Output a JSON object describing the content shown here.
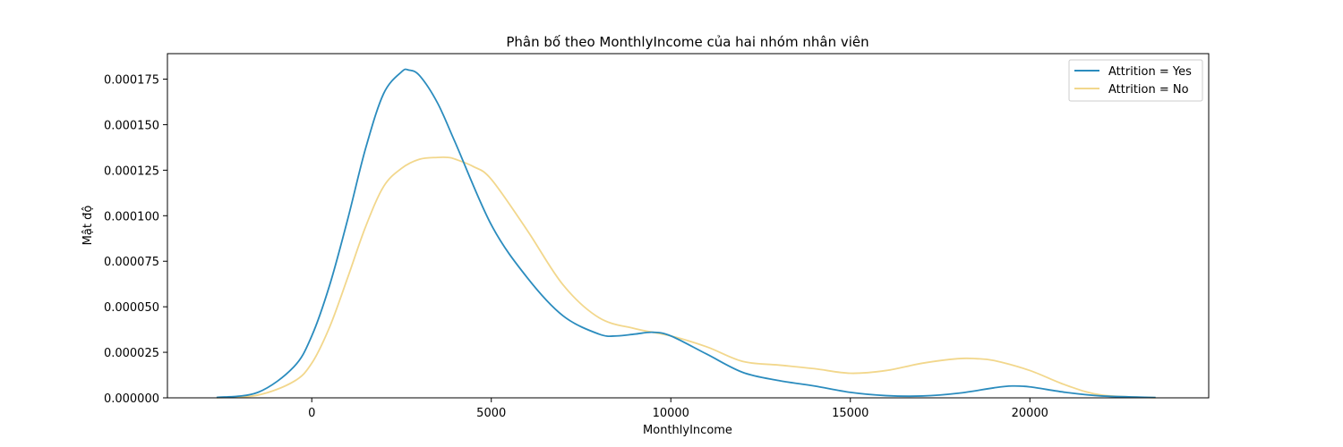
{
  "chart_data": {
    "type": "line",
    "title": "Phân bố theo MonthlyIncome của hai nhóm nhân viên",
    "xlabel": "MonthlyIncome",
    "ylabel": "Mật độ",
    "xlim": [
      -4020,
      24980
    ],
    "ylim": [
      0,
      0.000189
    ],
    "x_ticks": [
      0,
      5000,
      10000,
      15000,
      20000
    ],
    "x_tick_labels": [
      "0",
      "5000",
      "10000",
      "15000",
      "20000"
    ],
    "y_ticks": [
      0,
      2.5e-05,
      5e-05,
      7.5e-05,
      0.0001,
      0.000125,
      0.00015,
      0.000175
    ],
    "y_tick_labels": [
      "0.000000",
      "0.000025",
      "0.000050",
      "0.000075",
      "0.000100",
      "0.000125",
      "0.000150",
      "0.000175"
    ],
    "grid": false,
    "legend_position": "top-right",
    "series": [
      {
        "name": "Attrition = Yes",
        "color": "#2b8cbe",
        "x": [
          -2650,
          -1500,
          -500,
          0,
          500,
          1000,
          1500,
          2000,
          2500,
          2700,
          3000,
          3500,
          4000,
          5000,
          6000,
          7000,
          8000,
          8500,
          9000,
          9500,
          10000,
          11000,
          12000,
          13000,
          14000,
          15000,
          16000,
          17000,
          18000,
          19000,
          19500,
          20000,
          21000,
          22000,
          23500
        ],
        "y": [
          2e-07,
          3e-06,
          1.7e-05,
          3.4e-05,
          6.2e-05,
          9.8e-05,
          0.000137,
          0.000167,
          0.000179,
          0.00018,
          0.000177,
          0.000162,
          0.00014,
          9.5e-05,
          6.6e-05,
          4.5e-05,
          3.5e-05,
          3.4e-05,
          3.5e-05,
          3.6e-05,
          3.4e-05,
          2.4e-05,
          1.4e-05,
          9.5e-06,
          6.5e-06,
          3e-06,
          1.2e-06,
          1e-06,
          2.5e-06,
          5.5e-06,
          6.5e-06,
          6e-06,
          3e-06,
          1e-06,
          2e-07
        ]
      },
      {
        "name": "Attrition = No",
        "color": "#f2d78c",
        "x": [
          -2650,
          -1500,
          -500,
          0,
          500,
          1000,
          1500,
          2000,
          2500,
          3000,
          3500,
          3800,
          4000,
          4500,
          5000,
          6000,
          7000,
          8000,
          9000,
          10000,
          11000,
          12000,
          13000,
          14000,
          15000,
          16000,
          17000,
          18000,
          18500,
          19000,
          20000,
          21000,
          22000,
          23500
        ],
        "y": [
          1e-07,
          1.5e-06,
          9e-06,
          1.9e-05,
          3.9e-05,
          6.6e-05,
          9.4e-05,
          0.000116,
          0.000126,
          0.000131,
          0.000132,
          0.000132,
          0.000131,
          0.000127,
          0.00012,
          9.2e-05,
          6.2e-05,
          4.4e-05,
          3.8e-05,
          3.4e-05,
          2.8e-05,
          2e-05,
          1.8e-05,
          1.6e-05,
          1.35e-05,
          1.5e-05,
          1.9e-05,
          2.15e-05,
          2.15e-05,
          2.05e-05,
          1.5e-05,
          7e-06,
          1.5e-06,
          1e-07
        ]
      }
    ]
  }
}
